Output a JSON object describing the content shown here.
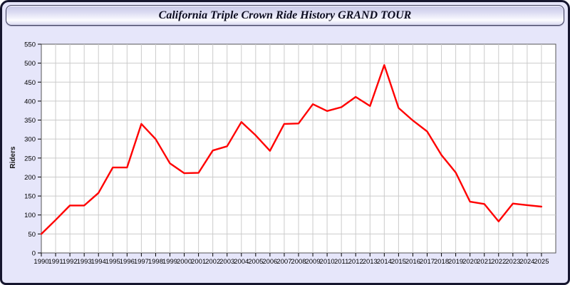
{
  "header": {
    "title": "California Triple Crown Ride History GRAND TOUR"
  },
  "chart_data": {
    "type": "line",
    "x": [
      1990,
      1991,
      1992,
      1993,
      1994,
      1995,
      1996,
      1997,
      1998,
      1999,
      2000,
      2001,
      2002,
      2003,
      2004,
      2005,
      2006,
      2007,
      2008,
      2009,
      2010,
      2011,
      2012,
      2013,
      2014,
      2015,
      2016,
      2017,
      2018,
      2019,
      2020,
      2021,
      2022,
      2023,
      2024,
      2025
    ],
    "series": [
      {
        "name": "Riders",
        "values": [
          50,
          87,
          125,
          125,
          158,
          225,
          225,
          340,
          300,
          236,
          210,
          211,
          270,
          281,
          345,
          310,
          269,
          340,
          341,
          392,
          374,
          384,
          411,
          387,
          495,
          382,
          349,
          320,
          258,
          212,
          135,
          129,
          83,
          130,
          126,
          122
        ]
      }
    ],
    "title": "California Triple Crown Ride History GRAND TOUR",
    "xlabel": "",
    "ylabel": "Riders",
    "ylim": [
      0,
      550
    ],
    "ytick_step": 50,
    "grid": true,
    "legend_position": "none",
    "line_color": "#ff0000"
  },
  "colors": {
    "panel_background": "#e6e6fa",
    "plot_background": "#ffffff",
    "gridline": "#cbcbcb",
    "plot_border": "#555555",
    "tick": "#000000",
    "tick_label": "#000000",
    "outer_border": "#16162e",
    "line": "#ff0000"
  }
}
